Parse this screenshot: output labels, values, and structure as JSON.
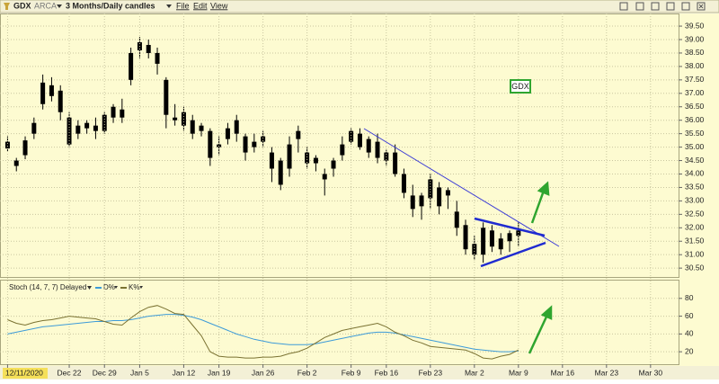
{
  "toolbar": {
    "symbol": "GDX",
    "exchange": "ARCA",
    "period": "3 Months/Daily candles",
    "menus": [
      "File",
      "Edit",
      "View"
    ]
  },
  "chart_data": [
    {
      "type": "candlestick",
      "color": "#000000",
      "annotation": "GDX",
      "grid": true,
      "x": [
        0,
        1,
        2,
        3,
        4,
        5,
        6,
        7,
        8,
        9,
        10,
        11,
        12,
        13,
        14,
        15,
        16,
        17,
        18,
        19,
        20,
        21,
        22,
        23,
        24,
        25,
        26,
        27,
        28,
        29,
        30,
        31,
        32,
        33,
        34,
        35,
        36,
        37,
        38,
        39,
        40,
        41,
        42,
        43,
        44,
        45,
        46,
        47,
        48,
        49,
        50,
        51,
        52,
        53,
        54,
        55,
        56,
        57,
        58
      ],
      "open": [
        35.2,
        34.5,
        34.7,
        35.5,
        36.6,
        37.3,
        37.1,
        36.1,
        35.5,
        35.7,
        35.8,
        35.6,
        36.1,
        36.4,
        37.5,
        38.6,
        38.8,
        38.5,
        37.5,
        36.1,
        35.8,
        36.0,
        35.8,
        35.6,
        35.0,
        35.3,
        35.5,
        35.4,
        35.0,
        35.2,
        34.8,
        34.5,
        34.2,
        35.3,
        34.8,
        34.4,
        33.8,
        34.2,
        34.7,
        35.2,
        35.5,
        34.8,
        35.2,
        34.5,
        34.8,
        34.0,
        33.2,
        32.8,
        33.1,
        33.5,
        33.2,
        32.6,
        32.1,
        31.4,
        31.0,
        31.9,
        31.2,
        31.5,
        31.7
      ],
      "high": [
        35.4,
        34.6,
        35.4,
        36.1,
        37.7,
        37.6,
        37.3,
        36.3,
        36.0,
        36.0,
        36.1,
        36.3,
        36.6,
        36.8,
        38.7,
        39.1,
        39.0,
        38.7,
        37.6,
        36.6,
        36.5,
        36.2,
        35.9,
        35.7,
        35.4,
        35.9,
        36.2,
        35.5,
        35.5,
        35.6,
        35.0,
        34.6,
        35.4,
        35.8,
        35.0,
        34.7,
        34.2,
        34.6,
        35.4,
        35.7,
        35.7,
        35.4,
        35.5,
        34.9,
        35.1,
        34.2,
        33.6,
        33.3,
        34.0,
        33.7,
        33.5,
        33.0,
        32.3,
        31.7,
        32.2,
        32.1,
        31.8,
        31.9,
        32.2
      ],
      "low": [
        34.85,
        34.1,
        34.55,
        35.3,
        36.4,
        36.7,
        36.0,
        35.0,
        35.3,
        35.5,
        35.3,
        35.5,
        35.9,
        35.9,
        37.3,
        38.3,
        38.3,
        37.7,
        35.7,
        35.8,
        35.6,
        35.3,
        35.4,
        34.3,
        34.7,
        35.1,
        35.2,
        34.5,
        34.8,
        35.0,
        33.7,
        33.4,
        33.9,
        34.8,
        34.2,
        34.1,
        33.2,
        33.9,
        34.5,
        35.1,
        34.9,
        34.6,
        34.4,
        34.3,
        33.9,
        33.1,
        32.4,
        32.3,
        32.7,
        32.5,
        32.7,
        31.7,
        31.0,
        30.8,
        30.7,
        31.1,
        31.0,
        31.1,
        31.3
      ],
      "close": [
        34.95,
        34.3,
        35.25,
        35.9,
        37.4,
        36.9,
        36.3,
        35.1,
        35.8,
        35.9,
        35.6,
        36.2,
        36.5,
        36.1,
        38.5,
        38.9,
        38.5,
        38.1,
        36.2,
        36.0,
        36.3,
        35.5,
        35.6,
        34.6,
        35.1,
        35.7,
        36.0,
        34.8,
        35.2,
        35.4,
        34.2,
        33.6,
        35.1,
        35.6,
        34.4,
        34.6,
        34.0,
        34.5,
        35.1,
        35.6,
        35.0,
        35.3,
        34.6,
        34.8,
        34.0,
        33.3,
        32.7,
        33.2,
        33.8,
        32.8,
        33.4,
        32.0,
        31.2,
        31.0,
        32.0,
        31.3,
        31.6,
        31.8,
        31.9
      ],
      "xlim": [
        -0.86,
        76.18
      ],
      "ylim": [
        30.17,
        39.97
      ],
      "yticks": [
        {
          "value": 30.5,
          "label": "30.50"
        },
        {
          "value": 31,
          "label": "31.00"
        },
        {
          "value": 31.5,
          "label": "31.50"
        },
        {
          "value": 32,
          "label": "32.00"
        },
        {
          "value": 32.5,
          "label": "32.50"
        },
        {
          "value": 33,
          "label": "33.00"
        },
        {
          "value": 33.5,
          "label": "33.50"
        },
        {
          "value": 34,
          "label": "34.00"
        },
        {
          "value": 34.5,
          "label": "34.50"
        },
        {
          "value": 35,
          "label": "35.00"
        },
        {
          "value": 35.5,
          "label": "35.50"
        },
        {
          "value": 36,
          "label": "36.00"
        },
        {
          "value": 36.5,
          "label": "36.50"
        },
        {
          "value": 37,
          "label": "37.00"
        },
        {
          "value": 37.5,
          "label": "37.50"
        },
        {
          "value": 38,
          "label": "38.00"
        },
        {
          "value": 38.5,
          "label": "38.50"
        },
        {
          "value": 39,
          "label": "39.00"
        },
        {
          "value": 39.5,
          "label": "39.50"
        }
      ]
    },
    {
      "type": "line",
      "title": "Stoch (14, 7, 7) Delayed",
      "grid": true,
      "x": [
        0,
        1,
        2,
        3,
        4,
        5,
        6,
        7,
        8,
        9,
        10,
        11,
        12,
        13,
        14,
        15,
        16,
        17,
        18,
        19,
        20,
        21,
        22,
        23,
        24,
        25,
        26,
        27,
        28,
        29,
        30,
        31,
        32,
        33,
        34,
        35,
        36,
        37,
        38,
        39,
        40,
        41,
        42,
        43,
        44,
        45,
        46,
        47,
        48,
        49,
        50,
        51,
        52,
        53,
        54,
        55,
        56,
        57,
        58
      ],
      "series": [
        {
          "name": "D%",
          "color": "#3d9bd8",
          "values": [
            40,
            42,
            44,
            46,
            48,
            49,
            50,
            51,
            52,
            53,
            54,
            54,
            55,
            55,
            56,
            58,
            60,
            61,
            62,
            62,
            61,
            59,
            56,
            52,
            48,
            44,
            40,
            37,
            34,
            32,
            30,
            29,
            28,
            28,
            28,
            29,
            31,
            33,
            35,
            37,
            39,
            41,
            42,
            42,
            41,
            39,
            37,
            35,
            33,
            31,
            29,
            27,
            25,
            23,
            22,
            21,
            20,
            20,
            21
          ]
        },
        {
          "name": "K%",
          "color": "#7a7232",
          "values": [
            56,
            52,
            50,
            53,
            55,
            56,
            58,
            60,
            59,
            58,
            57,
            54,
            51,
            50,
            58,
            65,
            70,
            72,
            68,
            63,
            62,
            50,
            38,
            20,
            15,
            14,
            14,
            13,
            13,
            14,
            14,
            15,
            18,
            20,
            24,
            30,
            36,
            40,
            44,
            46,
            48,
            50,
            52,
            48,
            42,
            38,
            33,
            30,
            26,
            25,
            24,
            23,
            22,
            18,
            13,
            12,
            15,
            17,
            22
          ]
        }
      ],
      "xlim": [
        -0.86,
        76.18
      ],
      "ylim": [
        6,
        100
      ],
      "yticks": [
        20,
        40,
        60,
        80
      ],
      "xticks": [
        {
          "value": 0,
          "label": "12/11/2020"
        },
        {
          "value": 7,
          "label": "Dec 22"
        },
        {
          "value": 11,
          "label": "Dec 29"
        },
        {
          "value": 15,
          "label": "Jan 5"
        },
        {
          "value": 20,
          "label": "Jan 12"
        },
        {
          "value": 24,
          "label": "Jan 19"
        },
        {
          "value": 29,
          "label": "Jan 26"
        },
        {
          "value": 34,
          "label": "Feb 2"
        },
        {
          "value": 39,
          "label": "Feb 9"
        },
        {
          "value": 43,
          "label": "Feb 16"
        },
        {
          "value": 48,
          "label": "Feb 23"
        },
        {
          "value": 53,
          "label": "Mar 2"
        },
        {
          "value": 58,
          "label": "Mar 9"
        },
        {
          "value": 63,
          "label": "Mar 16"
        },
        {
          "value": 68,
          "label": "Mar 23"
        },
        {
          "value": 73,
          "label": "Mar 30"
        }
      ]
    }
  ]
}
